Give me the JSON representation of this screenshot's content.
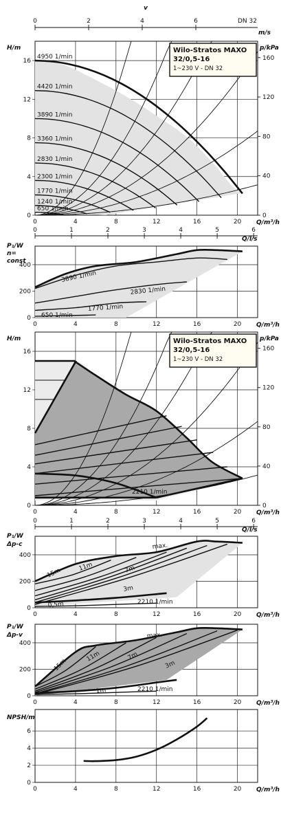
{
  "chart_data": [
    {
      "id": "hq1",
      "type": "line",
      "xlabel": "Q/m³/h",
      "ylabel": "H/m",
      "y2label": "p/kPa",
      "toplabel": "v",
      "toplabel_right": "m/s",
      "top_extra": "DN 32",
      "xlim": [
        0,
        22
      ],
      "ylim": [
        0,
        18
      ],
      "x_ticks": [
        "0",
        "4",
        "8",
        "12",
        "16",
        "20"
      ],
      "y_ticks": [
        "0",
        "4",
        "8",
        "12",
        "16"
      ],
      "y2_ticks": [
        "0",
        "40",
        "80",
        "120",
        "160"
      ],
      "top_ticks": [
        "0",
        "2",
        "4",
        "6"
      ],
      "box": {
        "title1": "Wilo-Stratos MAXO",
        "title2": "32/0,5-16",
        "sub": "1~230 V - DN 32"
      },
      "series": [
        {
          "name": "4950 1/min",
          "y0": 16
        },
        {
          "name": "4420 1/min",
          "y0": 12.9
        },
        {
          "name": "3890 1/min",
          "y0": 10
        },
        {
          "name": "3360 1/min",
          "y0": 7.5
        },
        {
          "name": "2830 1/min",
          "y0": 5.4
        },
        {
          "name": "2300 1/min",
          "y0": 3.6
        },
        {
          "name": "1770 1/min",
          "y0": 2.1
        },
        {
          "name": "1240 1/min",
          "y0": 1.0
        },
        {
          "name": "650 1/min",
          "y0": 0.3
        }
      ]
    },
    {
      "id": "p1",
      "type": "line",
      "xlabel": "Q/m³/h",
      "ylabel": "P₁/W",
      "ylabel2": "n=",
      "ylabel3": "const",
      "toplabel": "Q/l/s",
      "xlim": [
        0,
        22
      ],
      "ylim": [
        0,
        540
      ],
      "x_ticks": [
        "0",
        "4",
        "8",
        "12",
        "16",
        "20"
      ],
      "y_ticks": [
        "0",
        "200",
        "400"
      ],
      "top_ticks": [
        "0",
        "1",
        "2",
        "3",
        "4",
        "5",
        "6"
      ],
      "labels": [
        "3890 1/min",
        "2830 1/min",
        "1770 1/min",
        "650 1/min"
      ]
    },
    {
      "id": "hq2",
      "type": "line",
      "xlabel": "Q/m³/h",
      "ylabel": "H/m",
      "y2label": "p/kPa",
      "xlim": [
        0,
        22
      ],
      "ylim": [
        0,
        18
      ],
      "x_ticks": [
        "0",
        "4",
        "8",
        "12",
        "16",
        "20"
      ],
      "y_ticks": [
        "0",
        "4",
        "8",
        "12",
        "16"
      ],
      "y2_ticks": [
        "0",
        "40",
        "80",
        "120",
        "160"
      ],
      "box": {
        "title1": "Wilo-Stratos MAXO",
        "title2": "32/0,5-16",
        "sub": "1~230 V - DN 32"
      },
      "labels": [
        "2210 1/min"
      ]
    },
    {
      "id": "p2",
      "type": "line",
      "xlabel": "Q/m³/h",
      "ylabel": "P₁/W",
      "ylabel2": "Δp-c",
      "toplabel": "Q/l/s",
      "xlim": [
        0,
        22
      ],
      "ylim": [
        0,
        540
      ],
      "x_ticks": [
        "0",
        "4",
        "8",
        "12",
        "16",
        "20"
      ],
      "y_ticks": [
        "0",
        "200",
        "400"
      ],
      "top_ticks": [
        "0",
        "1",
        "2",
        "3",
        "4",
        "5",
        "6"
      ],
      "labels": [
        "max.",
        "15m",
        "11m",
        "7m",
        "3m",
        "0,5m",
        "2210 1/min"
      ]
    },
    {
      "id": "p3",
      "type": "line",
      "xlabel": "Q/m³/h",
      "ylabel": "P₁/W",
      "ylabel2": "Δp-v",
      "xlim": [
        0,
        22
      ],
      "ylim": [
        0,
        540
      ],
      "x_ticks": [
        "0",
        "4",
        "8",
        "12",
        "16",
        "20"
      ],
      "y_ticks": [
        "0",
        "200",
        "400"
      ],
      "labels": [
        "max.",
        "15m",
        "11m",
        "7m",
        "3m",
        "1m",
        "2210 1/min"
      ]
    },
    {
      "id": "npsh",
      "type": "line",
      "xlabel": "Q/m³/h",
      "ylabel": "NPSH/m",
      "xlim": [
        0,
        22
      ],
      "ylim": [
        0,
        8.5
      ],
      "x_ticks": [
        "0",
        "4",
        "8",
        "12",
        "16",
        "20"
      ],
      "y_ticks": [
        "0",
        "2",
        "4",
        "6"
      ],
      "x": [
        4.8,
        6,
        8,
        10,
        12,
        14,
        16,
        17
      ],
      "y": [
        2.5,
        2.48,
        2.6,
        3.0,
        3.8,
        5.0,
        6.5,
        7.5
      ]
    }
  ]
}
